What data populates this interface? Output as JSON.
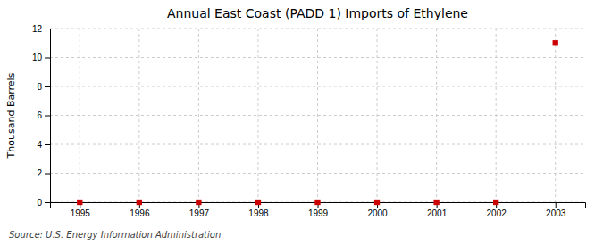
{
  "chart_data": {
    "type": "scatter",
    "title": "Annual East Coast (PADD 1) Imports of Ethylene",
    "y_label": "Thousand Barrels",
    "annotations": [
      "Source: U.S. Energy Information Administration"
    ],
    "x": [
      1995,
      1996,
      1997,
      1998,
      1999,
      2000,
      2001,
      2002,
      2003
    ],
    "values": [
      0,
      0,
      0,
      0,
      0,
      0,
      0,
      0,
      11
    ],
    "color": "#cc0000",
    "marker": "square",
    "xlim": [
      1994.5,
      2003.5
    ],
    "xticks": [
      1995,
      1996,
      1997,
      1998,
      1999,
      2000,
      2001,
      2002,
      2003
    ],
    "ylim": [
      0,
      12
    ],
    "yticks": [
      0,
      2,
      4,
      6,
      8,
      10,
      12
    ],
    "grid": true
  }
}
